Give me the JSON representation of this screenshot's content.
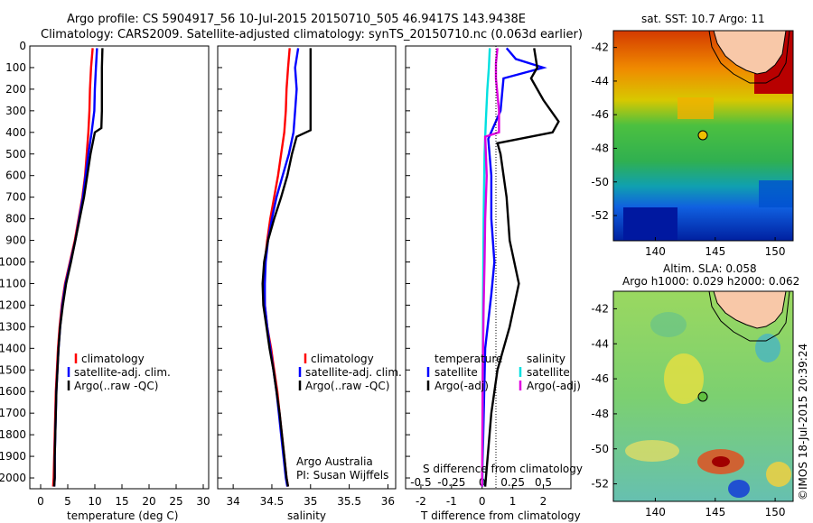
{
  "header": {
    "line1": "Argo profile: CS 5904917_56 10-Jul-2015 20150710_505 46.9417S 143.9438E",
    "line2": "Climatology: CARS2009. Satellite-adjusted climatology: synTS_20150710.nc (0.063d earlier)"
  },
  "footer": {
    "credit": "Argo Australia",
    "pi": "PI: Susan Wijffels",
    "stamp": "©IMOS 18-Jul-2015 20:39:24"
  },
  "colors": {
    "climatology": "#ff0000",
    "satellite": "#0000ff",
    "argo": "#000000",
    "sal_satellite": "#00e0e0",
    "sal_argo": "#e000e0"
  },
  "chart_data": [
    {
      "type": "line",
      "xlabel": "temperature (deg C)",
      "ylabel": "",
      "xlim": [
        -2,
        31
      ],
      "ylim": [
        2050,
        0
      ],
      "xticks": [
        0,
        5,
        10,
        15,
        20,
        25,
        30
      ],
      "yticks": [
        0,
        100,
        200,
        300,
        400,
        500,
        600,
        700,
        800,
        900,
        1000,
        1100,
        1200,
        1300,
        1400,
        1500,
        1600,
        1700,
        1800,
        1900,
        2000
      ],
      "legend": [
        "climatology",
        "satellite-adj. clim.",
        "Argo(..raw -QC)"
      ],
      "legend_position": "lower-right",
      "series": [
        {
          "name": "climatology",
          "color": "#ff0000",
          "points": [
            [
              9.6,
              10
            ],
            [
              9.3,
              100
            ],
            [
              9.1,
              200
            ],
            [
              9.0,
              300
            ],
            [
              8.8,
              400
            ],
            [
              8.5,
              500
            ],
            [
              8.2,
              600
            ],
            [
              7.7,
              700
            ],
            [
              7.0,
              800
            ],
            [
              6.3,
              900
            ],
            [
              5.4,
              1000
            ],
            [
              4.5,
              1100
            ],
            [
              3.9,
              1200
            ],
            [
              3.5,
              1300
            ],
            [
              3.2,
              1400
            ],
            [
              3.0,
              1500
            ],
            [
              2.8,
              1600
            ],
            [
              2.7,
              1700
            ],
            [
              2.6,
              1800
            ],
            [
              2.5,
              1900
            ],
            [
              2.4,
              2000
            ],
            [
              2.3,
              2040
            ]
          ]
        },
        {
          "name": "satellite-adj. clim.",
          "color": "#0000ff",
          "points": [
            [
              10.4,
              10
            ],
            [
              10.2,
              100
            ],
            [
              10.0,
              200
            ],
            [
              9.9,
              300
            ],
            [
              9.4,
              400
            ],
            [
              8.8,
              500
            ],
            [
              8.3,
              600
            ],
            [
              7.8,
              700
            ],
            [
              7.1,
              800
            ],
            [
              6.4,
              900
            ],
            [
              5.5,
              1000
            ],
            [
              4.6,
              1100
            ],
            [
              4.0,
              1200
            ],
            [
              3.6,
              1300
            ],
            [
              3.3,
              1400
            ],
            [
              3.1,
              1500
            ],
            [
              2.9,
              1600
            ],
            [
              2.8,
              1700
            ],
            [
              2.7,
              1800
            ],
            [
              2.6,
              1900
            ],
            [
              2.6,
              2000
            ],
            [
              2.5,
              2040
            ]
          ]
        },
        {
          "name": "Argo(..raw -QC)",
          "color": "#000000",
          "points": [
            [
              11.4,
              10
            ],
            [
              11.3,
              100
            ],
            [
              11.3,
              200
            ],
            [
              11.3,
              300
            ],
            [
              11.2,
              380
            ],
            [
              10.0,
              400
            ],
            [
              9.6,
              450
            ],
            [
              9.2,
              500
            ],
            [
              8.6,
              600
            ],
            [
              8.0,
              700
            ],
            [
              7.2,
              800
            ],
            [
              6.4,
              900
            ],
            [
              5.6,
              1000
            ],
            [
              4.7,
              1100
            ],
            [
              4.1,
              1200
            ],
            [
              3.6,
              1300
            ],
            [
              3.3,
              1400
            ],
            [
              3.1,
              1500
            ],
            [
              2.9,
              1600
            ],
            [
              2.8,
              1700
            ],
            [
              2.7,
              1800
            ],
            [
              2.6,
              1900
            ],
            [
              2.6,
              2000
            ],
            [
              2.5,
              2040
            ]
          ]
        }
      ]
    },
    {
      "type": "line",
      "xlabel": "salinity",
      "ylabel": "",
      "xlim": [
        33.8,
        36.1
      ],
      "ylim": [
        2050,
        0
      ],
      "xticks": [
        34,
        34.5,
        35,
        35.5,
        36
      ],
      "legend": [
        "climatology",
        "satellite-adj. clim.",
        "Argo(..raw -QC)"
      ],
      "legend_position": "lower-right",
      "series": [
        {
          "name": "climatology",
          "color": "#ff0000",
          "points": [
            [
              34.73,
              10
            ],
            [
              34.71,
              100
            ],
            [
              34.69,
              200
            ],
            [
              34.68,
              300
            ],
            [
              34.66,
              400
            ],
            [
              34.62,
              500
            ],
            [
              34.58,
              600
            ],
            [
              34.53,
              700
            ],
            [
              34.48,
              800
            ],
            [
              34.44,
              900
            ],
            [
              34.41,
              1000
            ],
            [
              34.4,
              1100
            ],
            [
              34.41,
              1200
            ],
            [
              34.44,
              1300
            ],
            [
              34.49,
              1400
            ],
            [
              34.53,
              1500
            ],
            [
              34.57,
              1600
            ],
            [
              34.6,
              1700
            ],
            [
              34.63,
              1800
            ],
            [
              34.66,
              1900
            ],
            [
              34.69,
              2000
            ],
            [
              34.71,
              2040
            ]
          ]
        },
        {
          "name": "satellite-adj. clim.",
          "color": "#0000ff",
          "points": [
            [
              34.84,
              10
            ],
            [
              34.8,
              100
            ],
            [
              34.82,
              200
            ],
            [
              34.8,
              300
            ],
            [
              34.78,
              400
            ],
            [
              34.72,
              500
            ],
            [
              34.64,
              600
            ],
            [
              34.56,
              700
            ],
            [
              34.5,
              800
            ],
            [
              34.45,
              900
            ],
            [
              34.42,
              1000
            ],
            [
              34.41,
              1100
            ],
            [
              34.41,
              1200
            ],
            [
              34.44,
              1300
            ],
            [
              34.48,
              1400
            ],
            [
              34.52,
              1500
            ],
            [
              34.56,
              1600
            ],
            [
              34.59,
              1700
            ],
            [
              34.62,
              1800
            ],
            [
              34.65,
              1900
            ],
            [
              34.68,
              2000
            ],
            [
              34.7,
              2040
            ]
          ]
        },
        {
          "name": "Argo(..raw -QC)",
          "color": "#000000",
          "points": [
            [
              35.0,
              10
            ],
            [
              35.0,
              100
            ],
            [
              35.0,
              200
            ],
            [
              35.0,
              300
            ],
            [
              35.0,
              390
            ],
            [
              34.82,
              420
            ],
            [
              34.76,
              500
            ],
            [
              34.7,
              600
            ],
            [
              34.62,
              700
            ],
            [
              34.53,
              800
            ],
            [
              34.45,
              900
            ],
            [
              34.4,
              1000
            ],
            [
              34.38,
              1100
            ],
            [
              34.39,
              1200
            ],
            [
              34.43,
              1300
            ],
            [
              34.47,
              1400
            ],
            [
              34.52,
              1500
            ],
            [
              34.56,
              1600
            ],
            [
              34.6,
              1700
            ],
            [
              34.63,
              1800
            ],
            [
              34.66,
              1900
            ],
            [
              34.69,
              2000
            ],
            [
              34.71,
              2040
            ]
          ]
        }
      ]
    },
    {
      "type": "line",
      "xlabel": "T difference from climatology",
      "xlabel_top": "S difference from climatology",
      "ylim": [
        2050,
        0
      ],
      "xlim": [
        -2.5,
        2.9
      ],
      "xticks": [
        -2,
        -1,
        0,
        1,
        2
      ],
      "xticks_s": [
        "-0.5",
        "-0.25",
        "0",
        "0.25",
        "0.5"
      ],
      "legend_temperature_title": "temperature",
      "legend_salinity_title": "salinity",
      "legend_temperature": [
        "satellite",
        "Argo(-adj)"
      ],
      "legend_salinity": [
        "satellite",
        "Argo(-adj)"
      ],
      "series": [
        {
          "name": "temperature satellite",
          "color": "#0000ff",
          "points": [
            [
              0.8,
              10
            ],
            [
              1.1,
              60
            ],
            [
              2.0,
              100
            ],
            [
              0.7,
              150
            ],
            [
              0.6,
              300
            ],
            [
              0.2,
              430
            ],
            [
              0.3,
              600
            ],
            [
              0.3,
              800
            ],
            [
              0.4,
              1000
            ],
            [
              0.3,
              1150
            ],
            [
              0.1,
              1400
            ],
            [
              0.0,
              2040
            ]
          ]
        },
        {
          "name": "temperature Argo(-adj)",
          "color": "#000000",
          "points": [
            [
              1.7,
              10
            ],
            [
              1.8,
              100
            ],
            [
              1.6,
              150
            ],
            [
              2.0,
              250
            ],
            [
              2.5,
              350
            ],
            [
              2.3,
              400
            ],
            [
              0.5,
              450
            ],
            [
              0.6,
              500
            ],
            [
              0.8,
              700
            ],
            [
              0.9,
              900
            ],
            [
              1.2,
              1100
            ],
            [
              0.9,
              1300
            ],
            [
              0.5,
              1500
            ],
            [
              0.3,
              1700
            ],
            [
              0.1,
              2040
            ]
          ]
        },
        {
          "name": "salinity satellite",
          "color": "#00e0e0",
          "points": [
            [
              0.25,
              10
            ],
            [
              0.22,
              100
            ],
            [
              0.17,
              200
            ],
            [
              0.12,
              350
            ],
            [
              0.08,
              500
            ],
            [
              0.05,
              800
            ],
            [
              0.03,
              1200
            ],
            [
              0.02,
              1600
            ],
            [
              0.01,
              2040
            ]
          ]
        },
        {
          "name": "salinity Argo(-adj)",
          "color": "#e000e0",
          "points": [
            [
              0.5,
              10
            ],
            [
              0.45,
              80
            ],
            [
              0.45,
              150
            ],
            [
              0.55,
              300
            ],
            [
              0.55,
              400
            ],
            [
              0.1,
              420
            ],
            [
              0.15,
              600
            ],
            [
              0.1,
              800
            ],
            [
              0.08,
              1000
            ],
            [
              0.05,
              1200
            ],
            [
              0.02,
              1500
            ],
            [
              0.0,
              2040
            ]
          ]
        }
      ]
    }
  ],
  "maps": [
    {
      "title": "sat. SST: 10.7 Argo: 11",
      "xticks": [
        140,
        145,
        150
      ],
      "yticks": [
        -42,
        -44,
        -46,
        -48,
        -50,
        -52
      ],
      "xlim": [
        136.5,
        151.5
      ],
      "ylim": [
        -53.5,
        -41
      ]
    },
    {
      "title_line1": "Altim. SLA: 0.058",
      "title_line2": "Argo h1000: 0.029 h2000: 0.062",
      "xticks": [
        140,
        145,
        150
      ],
      "yticks": [
        -42,
        -44,
        -46,
        -48,
        -50,
        -52
      ],
      "xlim": [
        136.5,
        151.5
      ],
      "ylim": [
        -53,
        -41
      ]
    }
  ]
}
